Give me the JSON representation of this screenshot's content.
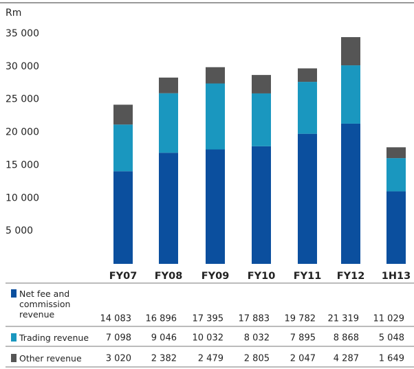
{
  "chart_data": {
    "type": "stacked_bar",
    "y_axis_label": "Rm",
    "categories": [
      "FY07",
      "FY08",
      "FY09",
      "FY10",
      "FY11",
      "FY12",
      "1H13"
    ],
    "series": [
      {
        "name": "Net fee and commission revenue",
        "color": "#0b4f9e",
        "values": [
          14083,
          16896,
          17395,
          17883,
          19782,
          21319,
          11029
        ],
        "value_labels": [
          "14 083",
          "16 896",
          "17 395",
          "17 883",
          "19 782",
          "21 319",
          "11 029"
        ]
      },
      {
        "name": "Trading revenue",
        "color": "#1a97bf",
        "values": [
          7098,
          9046,
          10032,
          8032,
          7895,
          8868,
          5048
        ],
        "value_labels": [
          "7 098",
          "9 046",
          "10 032",
          "8 032",
          "7 895",
          "8 868",
          "5 048"
        ]
      },
      {
        "name": "Other revenue",
        "color": "#555555",
        "values": [
          3020,
          2382,
          2479,
          2805,
          2047,
          4287,
          1649
        ],
        "value_labels": [
          "3 020",
          "2 382",
          "2 479",
          "2 805",
          "2 047",
          "4 287",
          "1 649"
        ]
      }
    ],
    "ylim": [
      0,
      35000
    ],
    "yticks": [
      {
        "value": 5000,
        "label": "5 000"
      },
      {
        "value": 10000,
        "label": "10 000"
      },
      {
        "value": 15000,
        "label": "15 000"
      },
      {
        "value": 20000,
        "label": "20 000"
      },
      {
        "value": 25000,
        "label": "25 000"
      },
      {
        "value": 30000,
        "label": "30 000"
      },
      {
        "value": 35000,
        "label": "35 000"
      }
    ]
  }
}
